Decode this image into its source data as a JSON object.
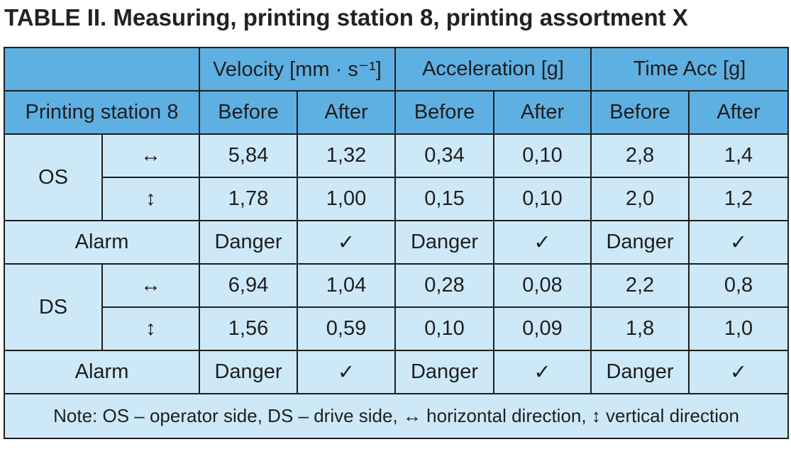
{
  "title": "TABLE II. Measuring, printing station 8, printing assortment X",
  "table": {
    "groups": [
      "Velocity [mm · s⁻¹]",
      "Acceleration [g]",
      "Time Acc [g]"
    ],
    "stub": "Printing station 8",
    "subheaders": [
      "Before",
      "After",
      "Before",
      "After",
      "Before",
      "After"
    ],
    "sides": [
      {
        "side": "OS",
        "rows": [
          {
            "direction": "↔",
            "values": [
              "5,84",
              "1,32",
              "0,34",
              "0,10",
              "2,8",
              "1,4"
            ]
          },
          {
            "direction": "↕",
            "values": [
              "1,78",
              "1,00",
              "0,15",
              "0,10",
              "2,0",
              "1,2"
            ]
          }
        ],
        "alarm": {
          "label": "Alarm",
          "values": [
            "Danger",
            "✓",
            "Danger",
            "✓",
            "Danger",
            "✓"
          ]
        }
      },
      {
        "side": "DS",
        "rows": [
          {
            "direction": "↔",
            "values": [
              "6,94",
              "1,04",
              "0,28",
              "0,08",
              "2,2",
              "0,8"
            ]
          },
          {
            "direction": "↕",
            "values": [
              "1,56",
              "0,59",
              "0,10",
              "0,09",
              "1,8",
              "1,0"
            ]
          }
        ],
        "alarm": {
          "label": "Alarm",
          "values": [
            "Danger",
            "✓",
            "Danger",
            "✓",
            "Danger",
            "✓"
          ]
        }
      }
    ],
    "note": "Note: OS – operator side, DS – drive side, ↔ horizontal direction, ↕ vertical direction"
  }
}
